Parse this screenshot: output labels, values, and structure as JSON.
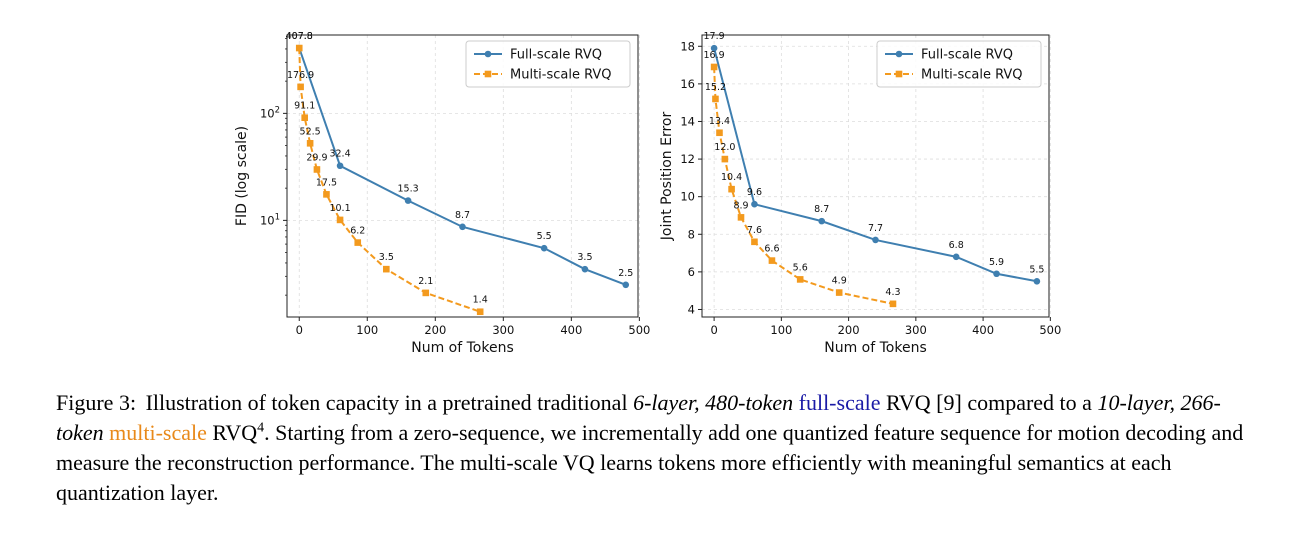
{
  "colors": {
    "full": "#3f7fb0",
    "multi": "#f39a1e",
    "grid": "#dddddd",
    "caption_full": "#1a1aa6",
    "caption_multi": "#e8891a"
  },
  "chart_data": [
    {
      "type": "line",
      "ylabel": "FID (log scale)",
      "xlabel": "Num of Tokens",
      "yscale": "log",
      "xlim": [
        -18,
        498
      ],
      "ylim": [
        1.25,
        540
      ],
      "xticks": [
        0,
        100,
        200,
        300,
        400,
        500
      ],
      "yticks": [
        {
          "value": 10,
          "base": "10",
          "exp": "1"
        },
        {
          "value": 100,
          "base": "10",
          "exp": "2"
        }
      ],
      "grid": true,
      "legend_position": "top-right",
      "series": [
        {
          "name": "Full-scale RVQ",
          "key": "full",
          "marker": "circle",
          "dashed": false,
          "x": [
            0,
            60,
            160,
            240,
            360,
            420,
            480
          ],
          "y": [
            407.8,
            32.4,
            15.3,
            8.7,
            5.5,
            3.5,
            2.5
          ],
          "labels": [
            "407.8",
            "32.4",
            "15.3",
            "8.7",
            "5.5",
            "3.5",
            "2.5"
          ]
        },
        {
          "name": "Multi-scale RVQ",
          "key": "multi",
          "marker": "square",
          "dashed": true,
          "x": [
            0,
            2,
            8,
            16,
            26,
            40,
            60,
            86,
            128,
            186,
            266
          ],
          "y": [
            407.8,
            176.9,
            91.1,
            52.5,
            29.9,
            17.5,
            10.1,
            6.2,
            3.5,
            2.1,
            1.4
          ],
          "labels": [
            "407.8",
            "176.9",
            "91.1",
            "52.5",
            "29.9",
            "17.5",
            "10.1",
            "6.2",
            "3.5",
            "2.1",
            "1.4"
          ]
        }
      ]
    },
    {
      "type": "line",
      "ylabel": "Joint Position Error",
      "xlabel": "Num of Tokens",
      "yscale": "linear",
      "xlim": [
        -18,
        498
      ],
      "ylim": [
        3.6,
        18.6
      ],
      "xticks": [
        0,
        100,
        200,
        300,
        400,
        500
      ],
      "yticks": [
        4,
        6,
        8,
        10,
        12,
        14,
        16,
        18
      ],
      "grid": true,
      "legend_position": "top-right",
      "series": [
        {
          "name": "Full-scale RVQ",
          "key": "full",
          "marker": "circle",
          "dashed": false,
          "x": [
            0,
            60,
            160,
            240,
            360,
            420,
            480
          ],
          "y": [
            17.9,
            9.6,
            8.7,
            7.7,
            6.8,
            5.9,
            5.5
          ],
          "labels": [
            "17.9",
            "9.6",
            "8.7",
            "7.7",
            "6.8",
            "5.9",
            "5.5"
          ]
        },
        {
          "name": "Multi-scale RVQ",
          "key": "multi",
          "marker": "square",
          "dashed": true,
          "x": [
            0,
            2,
            8,
            16,
            26,
            40,
            60,
            86,
            128,
            186,
            266
          ],
          "y": [
            16.9,
            15.2,
            13.4,
            12.0,
            10.4,
            8.9,
            7.6,
            6.6,
            5.6,
            4.9,
            4.3
          ],
          "labels": [
            "16.9",
            "15.2",
            "13.4",
            "12.0",
            "10.4",
            "8.9",
            "7.6",
            "6.6",
            "5.6",
            "4.9",
            "4.3"
          ]
        }
      ]
    }
  ],
  "caption": {
    "label": "Figure 3:",
    "t1": "Illustration of token capacity in a pretrained traditional ",
    "i1": "6-layer, 480-token",
    "full": "full-scale",
    "t2": " RVQ [9] compared to a ",
    "i2": "10-layer, 266-token",
    "multi": "multi-scale",
    "t3": " RVQ",
    "sup": "4",
    "t4": ". Starting from a zero-sequence, we incrementally add one quantized feature sequence for motion decoding and measure the reconstruction performance. The multi-scale VQ learns tokens more efficiently with meaningful semantics at each quantization layer."
  }
}
